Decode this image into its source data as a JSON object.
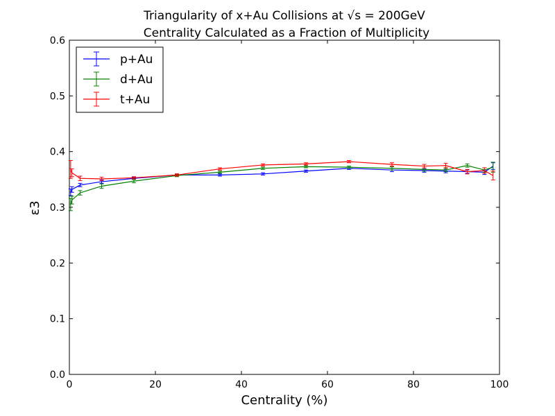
{
  "chart_data": {
    "type": "line",
    "title_line1": "Triangularity of x+Au Collisions at √s = 200GeV",
    "title_line2": "Centrality Calculated as a Fraction of Multiplicity",
    "xlabel": "Centrality (%)",
    "ylabel": "ε3",
    "xlim": [
      0,
      100
    ],
    "ylim": [
      0.0,
      0.6
    ],
    "x_ticks": [
      "0",
      "20",
      "40",
      "60",
      "80",
      "100"
    ],
    "y_ticks": [
      "0.0",
      "0.1",
      "0.2",
      "0.3",
      "0.4",
      "0.5",
      "0.6"
    ],
    "grid": false,
    "legend_position": "top-left",
    "series": [
      {
        "name": "p+Au",
        "color": "#0000ff",
        "x": [
          0.3,
          0.6,
          2.5,
          7.5,
          15,
          25,
          35,
          45,
          55,
          65,
          75,
          82.5,
          87.5,
          92.5,
          96.5,
          98.5
        ],
        "y": [
          0.327,
          0.332,
          0.34,
          0.346,
          0.352,
          0.358,
          0.358,
          0.36,
          0.365,
          0.37,
          0.367,
          0.366,
          0.365,
          0.364,
          0.363,
          0.374
        ],
        "err": [
          0.006,
          0.005,
          0.003,
          0.003,
          0.002,
          0.002,
          0.002,
          0.002,
          0.002,
          0.002,
          0.003,
          0.003,
          0.003,
          0.003,
          0.004,
          0.006
        ]
      },
      {
        "name": "d+Au",
        "color": "#008000",
        "x": [
          0.3,
          0.6,
          2.5,
          7.5,
          15,
          25,
          35,
          45,
          55,
          65,
          75,
          82.5,
          87.5,
          92.5,
          96.5,
          98.5
        ],
        "y": [
          0.305,
          0.313,
          0.326,
          0.338,
          0.347,
          0.357,
          0.363,
          0.37,
          0.373,
          0.372,
          0.37,
          0.368,
          0.367,
          0.375,
          0.367,
          0.372
        ],
        "err": [
          0.011,
          0.007,
          0.004,
          0.004,
          0.003,
          0.002,
          0.002,
          0.002,
          0.002,
          0.002,
          0.003,
          0.003,
          0.003,
          0.003,
          0.004,
          0.009
        ]
      },
      {
        "name": "t+Au",
        "color": "#ff0000",
        "x": [
          0.3,
          0.6,
          2.5,
          7.5,
          15,
          25,
          35,
          45,
          55,
          65,
          75,
          82.5,
          87.5,
          92.5,
          96.5,
          98.5
        ],
        "y": [
          0.368,
          0.362,
          0.352,
          0.351,
          0.353,
          0.358,
          0.369,
          0.376,
          0.378,
          0.382,
          0.377,
          0.374,
          0.375,
          0.364,
          0.366,
          0.357
        ],
        "err": [
          0.016,
          0.007,
          0.004,
          0.003,
          0.002,
          0.002,
          0.002,
          0.002,
          0.002,
          0.002,
          0.003,
          0.003,
          0.004,
          0.004,
          0.005,
          0.008
        ]
      }
    ]
  }
}
